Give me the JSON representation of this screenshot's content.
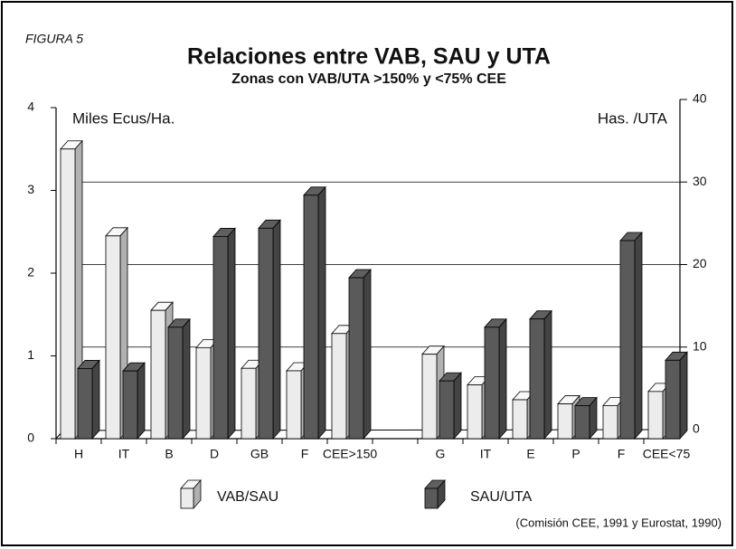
{
  "chart_data": {
    "type": "bar3d",
    "figure_label": "FIGURA 5",
    "title": "Relaciones entre VAB, SAU y UTA",
    "subtitle": "Zonas con VAB/UTA >150% y <75% CEE",
    "y_label": "Miles Ecus/Ha.",
    "y2_label": "Has. /UTA",
    "source": "(Comisión CEE, 1991 y Eurostat, 1990)",
    "categories": [
      "H",
      "IT",
      "B",
      "D",
      "GB",
      "F",
      "CEE>150",
      null,
      "G",
      "IT",
      "E",
      "P",
      "F",
      "CEE<75"
    ],
    "series": [
      {
        "name": "VAB/SAU",
        "color": "#ececec",
        "values": [
          3.5,
          2.45,
          1.55,
          1.1,
          0.85,
          0.82,
          1.27,
          null,
          1.02,
          0.65,
          0.47,
          0.42,
          0.4,
          0.57
        ]
      },
      {
        "name": "SAU/UTA",
        "color": "#5a5a5a",
        "axis": "y2",
        "values": [
          8.5,
          8.2,
          13.5,
          24.5,
          25.5,
          29.5,
          19.5,
          null,
          7,
          13.5,
          14.5,
          4,
          24,
          9.5
        ]
      }
    ],
    "ylim": [
      0,
      4
    ],
    "yticks": [
      0,
      1,
      2,
      3,
      4
    ],
    "y2lim": [
      0,
      40
    ],
    "y2ticks": [
      0,
      10,
      20,
      30,
      40
    ],
    "grid": true
  }
}
